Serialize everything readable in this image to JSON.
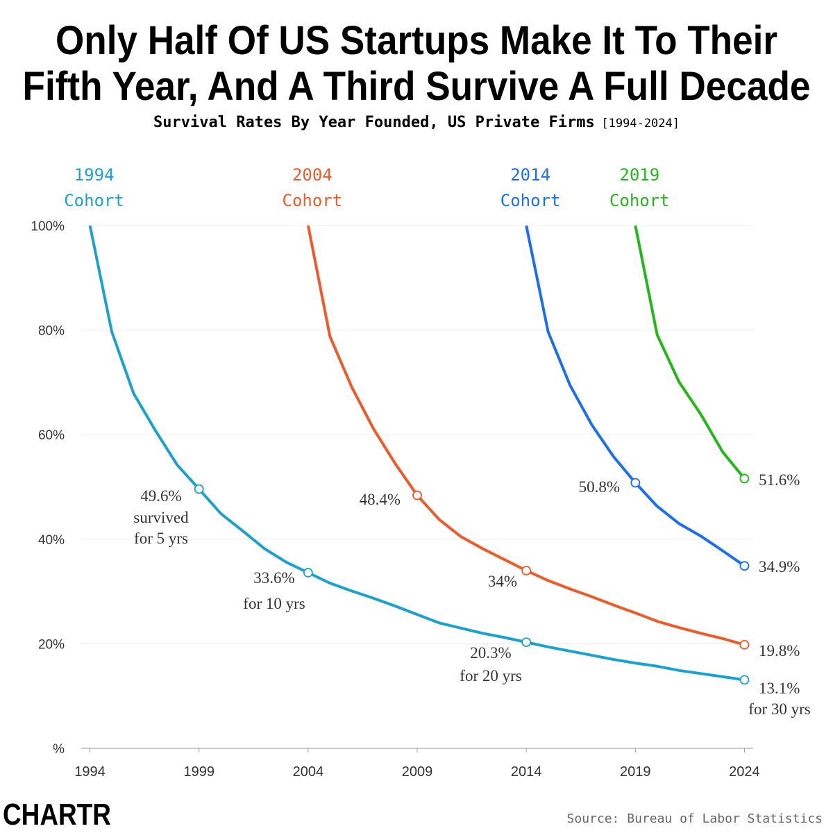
{
  "chart_data": {
    "type": "line",
    "title": [
      "Only Half Of US Startups Make It To Their",
      "Fifth Year, And A Third Survive A Full Decade"
    ],
    "subtitle": "Survival Rates By Year Founded, US Private Firms",
    "subtitle_range": "[1994-2024]",
    "source": "Source: Bureau of Labor Statistics",
    "logo": "CHARTR",
    "x": [
      1994,
      1995,
      1996,
      1997,
      1998,
      1999,
      2000,
      2001,
      2002,
      2003,
      2004,
      2005,
      2006,
      2007,
      2008,
      2009,
      2010,
      2011,
      2012,
      2013,
      2014,
      2015,
      2016,
      2017,
      2018,
      2019,
      2020,
      2021,
      2022,
      2023,
      2024
    ],
    "xlim": [
      1993.6,
      2024.4
    ],
    "xticks": [
      1994,
      1999,
      2004,
      2009,
      2014,
      2019,
      2024
    ],
    "ylim": [
      0,
      100
    ],
    "yticks": [
      {
        "value": 0,
        "label": "%"
      },
      {
        "value": 20,
        "label": "20%"
      },
      {
        "value": 40,
        "label": "40%"
      },
      {
        "value": 60,
        "label": "60%"
      },
      {
        "value": 80,
        "label": "80%"
      },
      {
        "value": 100,
        "label": "100%"
      }
    ],
    "grid": true,
    "series": [
      {
        "name": "1994 Cohort",
        "color": "#1ba1d0",
        "values": [
          100,
          79.7,
          67.9,
          60.8,
          54.2,
          49.6,
          44.9,
          41.6,
          38.2,
          35.6,
          33.6,
          31.6,
          30.1,
          28.7,
          27.2,
          25.6,
          24.0,
          23.0,
          22.0,
          21.2,
          20.3,
          19.4,
          18.6,
          17.8,
          17.0,
          16.3,
          15.7,
          14.9,
          14.3,
          13.7,
          13.1
        ],
        "value_labels": [
          null,
          null,
          null,
          null,
          null,
          "49.6%",
          null,
          null,
          null,
          null,
          "33.6%",
          null,
          null,
          null,
          null,
          null,
          null,
          null,
          null,
          null,
          "20.3%",
          null,
          null,
          null,
          null,
          null,
          null,
          null,
          null,
          null,
          "13.1%"
        ]
      },
      {
        "name": "2004 Cohort",
        "color": "#f05a28",
        "values": [
          null,
          null,
          null,
          null,
          null,
          null,
          null,
          null,
          null,
          null,
          100,
          78.8,
          69.1,
          61.1,
          54.4,
          48.4,
          43.8,
          40.5,
          38.2,
          36.1,
          34,
          32.1,
          30.5,
          29.0,
          27.4,
          25.9,
          24.3,
          23.1,
          22.0,
          21.0,
          19.8
        ],
        "value_labels": [
          null,
          null,
          null,
          null,
          null,
          null,
          null,
          null,
          null,
          null,
          null,
          null,
          null,
          null,
          null,
          "48.4%",
          null,
          null,
          null,
          null,
          "34%",
          null,
          null,
          null,
          null,
          null,
          null,
          null,
          null,
          null,
          "19.8%"
        ]
      },
      {
        "name": "2014 Cohort",
        "color": "#1a6ef5",
        "values": [
          null,
          null,
          null,
          null,
          null,
          null,
          null,
          null,
          null,
          null,
          null,
          null,
          null,
          null,
          null,
          null,
          null,
          null,
          null,
          null,
          100,
          79.7,
          69.5,
          61.9,
          55.8,
          50.8,
          46.3,
          43.0,
          40.6,
          37.8,
          34.9
        ],
        "value_labels": [
          null,
          null,
          null,
          null,
          null,
          null,
          null,
          null,
          null,
          null,
          null,
          null,
          null,
          null,
          null,
          null,
          null,
          null,
          null,
          null,
          null,
          null,
          null,
          null,
          null,
          "50.8%",
          null,
          null,
          null,
          null,
          "34.9%"
        ]
      },
      {
        "name": "2019 Cohort",
        "color": "#22b81a",
        "values": [
          null,
          null,
          null,
          null,
          null,
          null,
          null,
          null,
          null,
          null,
          null,
          null,
          null,
          null,
          null,
          null,
          null,
          null,
          null,
          null,
          null,
          null,
          null,
          null,
          null,
          100,
          79.1,
          70.1,
          63.9,
          56.7,
          51.6
        ],
        "value_labels": [
          null,
          null,
          null,
          null,
          null,
          null,
          null,
          null,
          null,
          null,
          null,
          null,
          null,
          null,
          null,
          null,
          null,
          null,
          null,
          null,
          null,
          null,
          null,
          null,
          null,
          null,
          null,
          null,
          null,
          null,
          "51.6%"
        ]
      }
    ],
    "annotations": [
      "survived",
      "for 5 yrs",
      "for 10 yrs",
      "for 20 yrs",
      "for 30 yrs"
    ]
  }
}
